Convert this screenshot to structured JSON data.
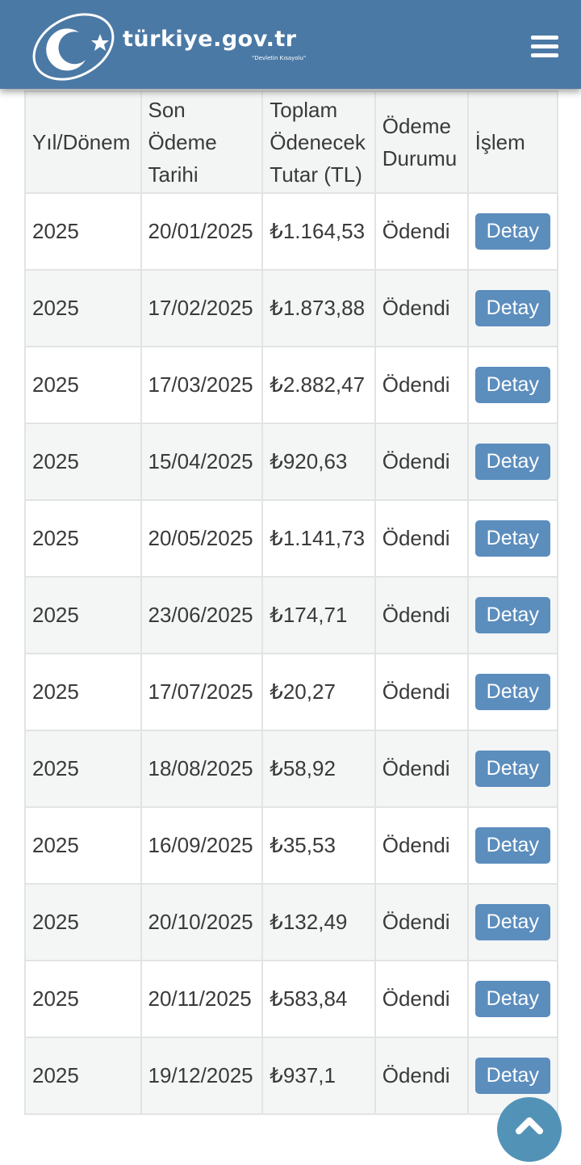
{
  "header": {
    "brand": "türkiye.gov.tr",
    "slogan": "\"Devletin Kısayolu\"",
    "bar_color": "#4b79a5"
  },
  "table": {
    "columns": [
      "Yıl/Dönem",
      "Son Ödeme Tarihi",
      "Toplam Ödenecek Tutar (TL)",
      "Ödeme Durumu",
      "İşlem"
    ],
    "rows": [
      {
        "period": "2025",
        "due": "20/01/2025",
        "amount": "₺1.164,53",
        "status": "Ödendi",
        "action": "Detay"
      },
      {
        "period": "2025",
        "due": "17/02/2025",
        "amount": "₺1.873,88",
        "status": "Ödendi",
        "action": "Detay"
      },
      {
        "period": "2025",
        "due": "17/03/2025",
        "amount": "₺2.882,47",
        "status": "Ödendi",
        "action": "Detay"
      },
      {
        "period": "2025",
        "due": "15/04/2025",
        "amount": "₺920,63",
        "status": "Ödendi",
        "action": "Detay"
      },
      {
        "period": "2025",
        "due": "20/05/2025",
        "amount": "₺1.141,73",
        "status": "Ödendi",
        "action": "Detay"
      },
      {
        "period": "2025",
        "due": "23/06/2025",
        "amount": "₺174,71",
        "status": "Ödendi",
        "action": "Detay"
      },
      {
        "period": "2025",
        "due": "17/07/2025",
        "amount": "₺20,27",
        "status": "Ödendi",
        "action": "Detay"
      },
      {
        "period": "2025",
        "due": "18/08/2025",
        "amount": "₺58,92",
        "status": "Ödendi",
        "action": "Detay"
      },
      {
        "period": "2025",
        "due": "16/09/2025",
        "amount": "₺35,53",
        "status": "Ödendi",
        "action": "Detay"
      },
      {
        "period": "2025",
        "due": "20/10/2025",
        "amount": "₺132,49",
        "status": "Ödendi",
        "action": "Detay"
      },
      {
        "period": "2025",
        "due": "20/11/2025",
        "amount": "₺583,84",
        "status": "Ödendi",
        "action": "Detay"
      },
      {
        "period": "2025",
        "due": "19/12/2025",
        "amount": "₺937,1",
        "status": "Ödendi",
        "action": "Detay"
      }
    ]
  },
  "icons": {
    "menu": "hamburger-icon",
    "scroll_top": "chevron-up-icon",
    "logo": "crescent-star-logo"
  }
}
